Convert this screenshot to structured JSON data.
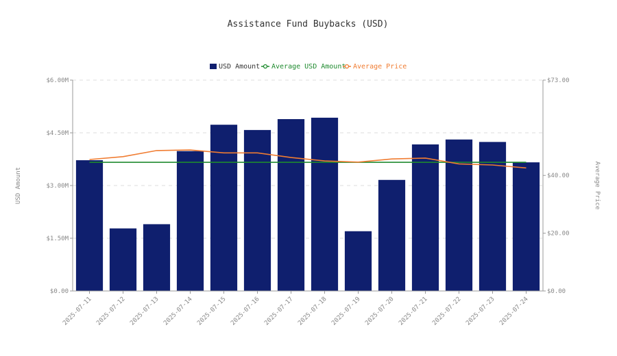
{
  "chart_data": {
    "type": "bar",
    "title": "Assistance Fund Buybacks (USD)",
    "categories": [
      "2025-07-11",
      "2025-07-12",
      "2025-07-13",
      "2025-07-14",
      "2025-07-15",
      "2025-07-16",
      "2025-07-17",
      "2025-07-18",
      "2025-07-19",
      "2025-07-20",
      "2025-07-21",
      "2025-07-22",
      "2025-07-23",
      "2025-07-24"
    ],
    "series": [
      {
        "name": "USD Amount",
        "kind": "bar",
        "axis": "left",
        "color": "#0f1f6e",
        "values": [
          3.72,
          1.78,
          1.9,
          3.98,
          4.73,
          4.58,
          4.89,
          4.93,
          1.7,
          3.16,
          4.17,
          4.31,
          4.24,
          3.66
        ]
      },
      {
        "name": "Average USD Amount",
        "kind": "line",
        "axis": "left",
        "color": "#1e8a2e",
        "values": [
          3.66,
          3.66,
          3.66,
          3.66,
          3.66,
          3.66,
          3.66,
          3.66,
          3.66,
          3.66,
          3.66,
          3.66,
          3.66,
          3.66
        ]
      },
      {
        "name": "Average Price",
        "kind": "line",
        "axis": "right",
        "color": "#f07c31",
        "values": [
          45.5,
          46.5,
          48.6,
          48.8,
          47.8,
          47.8,
          46.2,
          45.0,
          44.6,
          45.7,
          46.0,
          44.0,
          43.6,
          42.6
        ]
      }
    ],
    "y_left": {
      "label": "USD Amount",
      "range": [
        0,
        6
      ],
      "ticks": [
        {
          "v": 0,
          "label": "$0.00"
        },
        {
          "v": 1.5,
          "label": "$1.50M"
        },
        {
          "v": 3,
          "label": "$3.00M"
        },
        {
          "v": 4.5,
          "label": "$4.50M"
        },
        {
          "v": 6,
          "label": "$6.00M"
        }
      ]
    },
    "y_right": {
      "label": "Average Price",
      "range": [
        0,
        73
      ],
      "ticks": [
        {
          "v": 0,
          "label": "$0.00"
        },
        {
          "v": 20,
          "label": "$20.00"
        },
        {
          "v": 40,
          "label": "$40.00"
        },
        {
          "v": 73,
          "label": "$73.00"
        }
      ]
    },
    "grid": true,
    "legend_position": "top-center"
  }
}
